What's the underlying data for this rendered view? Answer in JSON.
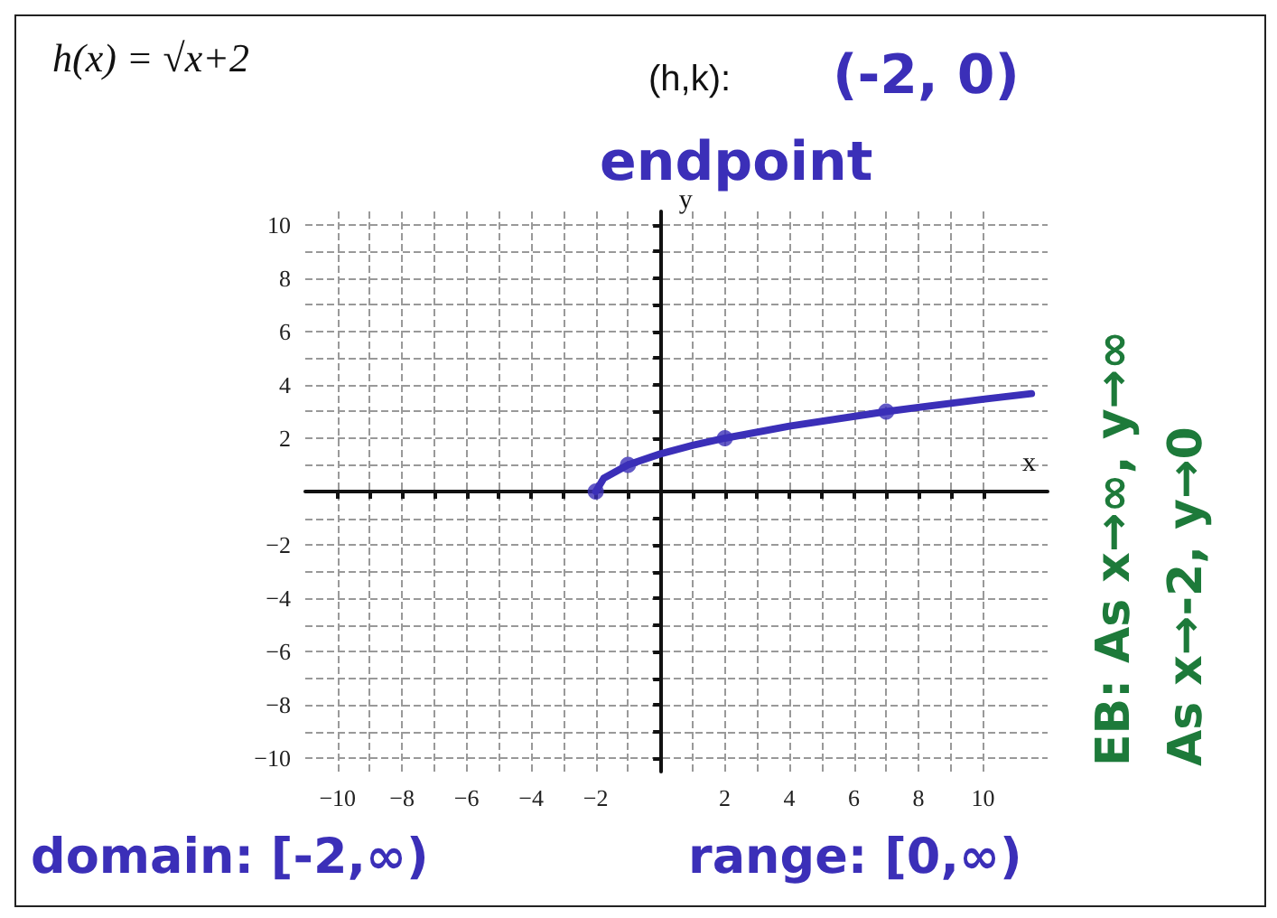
{
  "chart_data": {
    "type": "line",
    "title": "h(x) = √x+2",
    "xlabel": "x",
    "ylabel": "y",
    "annotations": [
      "(h,k):",
      "(-2, 0)",
      "endpoint",
      "EB: As x→∞, y→∞",
      "As x→-2, y→0",
      "domain: [-2,∞)",
      "range: [0,∞)"
    ],
    "series": [
      {
        "color": "#3b2fb8",
        "marker": "none",
        "x": [
          -2,
          -1.75,
          -1,
          0,
          1,
          2,
          4,
          7,
          10,
          11.5
        ],
        "values": [
          0,
          0.5,
          1,
          1.41,
          1.73,
          2,
          2.45,
          3,
          3.46,
          3.67
        ]
      },
      {
        "type": "scatter",
        "color": "#3b2fb8",
        "marker": "circle",
        "x": [
          -2,
          -1,
          2,
          7
        ],
        "values": [
          0,
          1,
          2,
          3
        ]
      }
    ],
    "xlim": [
      -11,
      12
    ],
    "ylim": [
      -10.5,
      10.5
    ],
    "xticks": [
      {
        "value": -10,
        "label": "−10"
      },
      {
        "value": -9,
        "label": null
      },
      {
        "value": -8,
        "label": "−8"
      },
      {
        "value": -7,
        "label": null
      },
      {
        "value": -6,
        "label": "−6"
      },
      {
        "value": -5,
        "label": null
      },
      {
        "value": -4,
        "label": "−4"
      },
      {
        "value": -3,
        "label": null
      },
      {
        "value": -2,
        "label": "−2"
      },
      {
        "value": -1,
        "label": null
      },
      {
        "value": 0,
        "label": null
      },
      {
        "value": 1,
        "label": null
      },
      2,
      {
        "value": 3,
        "label": null
      },
      4,
      {
        "value": 5,
        "label": null
      },
      6,
      {
        "value": 7,
        "label": null
      },
      8,
      {
        "value": 9,
        "label": null
      },
      10
    ],
    "yticks": [
      {
        "value": -10,
        "label": "−10"
      },
      {
        "value": -9,
        "label": null
      },
      {
        "value": -8,
        "label": "−8"
      },
      {
        "value": -7,
        "label": null
      },
      {
        "value": -6,
        "label": "−6"
      },
      {
        "value": -5,
        "label": null
      },
      {
        "value": -4,
        "label": "−4"
      },
      {
        "value": -3,
        "label": null
      },
      {
        "value": -2,
        "label": "−2"
      },
      {
        "value": -1,
        "label": null
      },
      {
        "value": 0,
        "label": null
      },
      {
        "value": 1,
        "label": null
      },
      2,
      {
        "value": 3,
        "label": null
      },
      4,
      {
        "value": 5,
        "label": null
      },
      6,
      {
        "value": 7,
        "label": null
      },
      8,
      {
        "value": 9,
        "label": null
      },
      10
    ],
    "grid": true
  }
}
